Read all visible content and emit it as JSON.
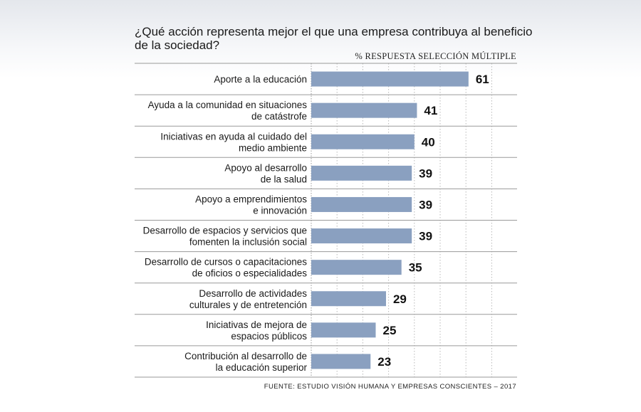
{
  "chart_data": {
    "type": "bar",
    "orientation": "horizontal",
    "title": "¿Qué acción representa mejor el que una empresa contribuya al beneficio de la sociedad?",
    "subtitle": "% RESPUESTA SELECCIÓN MÚLTIPLE",
    "categories": [
      [
        "Aporte a la educación"
      ],
      [
        "Ayuda a la comunidad en situaciones",
        "de catástrofe"
      ],
      [
        "Iniciativas en ayuda al cuidado del",
        "medio ambiente"
      ],
      [
        "Apoyo al desarrollo",
        "de la salud"
      ],
      [
        "Apoyo a emprendimientos",
        "e innovación"
      ],
      [
        "Desarrollo de espacios y servicios que",
        "fomenten la inclusión social"
      ],
      [
        "Desarrollo de cursos o capacitaciones",
        "de oficios o especialidades"
      ],
      [
        "Desarrollo de actividades",
        "culturales y de entretención"
      ],
      [
        "Iniciativas de mejora de",
        "espacios públicos"
      ],
      [
        "Contribución al desarrollo de",
        "la educación superior"
      ]
    ],
    "values": [
      61,
      41,
      40,
      39,
      39,
      39,
      35,
      29,
      25,
      23
    ],
    "xlim": [
      0,
      80
    ],
    "grid": true,
    "bar_color": "#8aa0c0",
    "source": "FUENTE: ESTUDIO VISIÓN HUMANA Y EMPRESAS CONSCIENTES – 2017"
  }
}
